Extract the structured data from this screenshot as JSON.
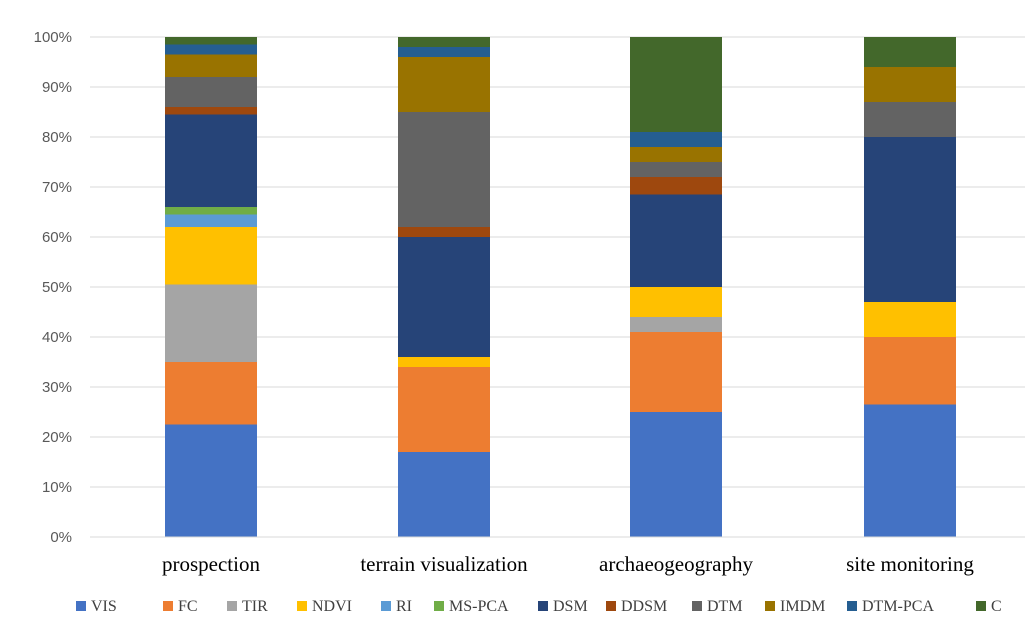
{
  "chart_data": {
    "type": "bar",
    "stacked": "percent",
    "categories": [
      "prospection",
      "terrain visualization",
      "archaeogeography",
      "site monitoring"
    ],
    "y_ticks": [
      "0%",
      "10%",
      "20%",
      "30%",
      "40%",
      "50%",
      "60%",
      "70%",
      "80%",
      "90%",
      "100%"
    ],
    "ylim": [
      0,
      100
    ],
    "grid": true,
    "legend_position": "bottom",
    "series": [
      {
        "name": "VIS",
        "color": "#4472C4",
        "values": [
          22.5,
          17,
          25,
          26.5
        ]
      },
      {
        "name": "FC",
        "color": "#ED7D31",
        "values": [
          12.5,
          17,
          16,
          13.5
        ]
      },
      {
        "name": "TIR",
        "color": "#A5A5A5",
        "values": [
          15.5,
          0,
          3,
          0
        ]
      },
      {
        "name": "NDVI",
        "color": "#FFC000",
        "values": [
          11.5,
          2,
          6,
          7
        ]
      },
      {
        "name": "RI",
        "color": "#5B9BD5",
        "values": [
          2.5,
          0,
          0,
          0
        ]
      },
      {
        "name": "MS-PCA",
        "color": "#70AD47",
        "values": [
          1.5,
          0,
          0,
          0
        ]
      },
      {
        "name": "DSM",
        "color": "#264478",
        "values": [
          18.5,
          24,
          18.5,
          33
        ]
      },
      {
        "name": "DDSM",
        "color": "#9E480E",
        "values": [
          1.5,
          2,
          3.5,
          0
        ]
      },
      {
        "name": "DTM",
        "color": "#636363",
        "values": [
          6,
          23,
          3,
          7
        ]
      },
      {
        "name": "IMDM",
        "color": "#997300",
        "values": [
          4.5,
          11,
          3,
          7
        ]
      },
      {
        "name": "DTM-PCA",
        "color": "#255E91",
        "values": [
          2,
          2,
          3,
          0
        ]
      },
      {
        "name": "C",
        "color": "#43682B",
        "values": [
          1.5,
          2,
          19,
          6
        ]
      }
    ]
  }
}
